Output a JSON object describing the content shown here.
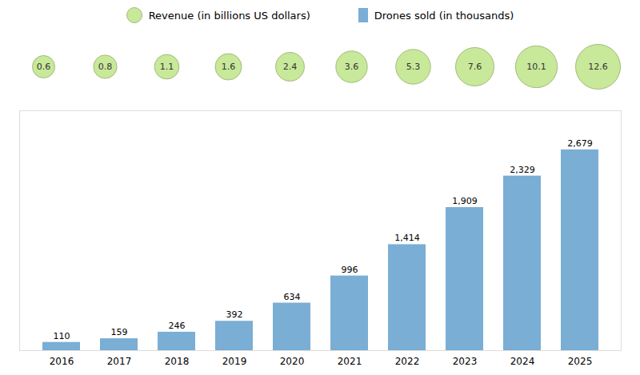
{
  "chart_data": {
    "type": "bar",
    "categories": [
      "2016",
      "2017",
      "2018",
      "2019",
      "2020",
      "2021",
      "2022",
      "2023",
      "2024",
      "2025"
    ],
    "series": [
      {
        "name": "Revenue (in billions US dollars)",
        "type": "bubble",
        "color": "#c8e89a",
        "values": [
          0.6,
          0.8,
          1.1,
          1.6,
          2.4,
          3.6,
          5.3,
          7.6,
          10.1,
          12.6
        ]
      },
      {
        "name": "Drones sold (in thousands)",
        "type": "bar",
        "color": "#7aaed4",
        "values": [
          110,
          159,
          246,
          392,
          634,
          996,
          1414,
          1909,
          2329,
          2679
        ],
        "value_labels": [
          "110",
          "159",
          "246",
          "392",
          "634",
          "996",
          "1,414",
          "1,909",
          "2,329",
          "2,679"
        ]
      }
    ],
    "ylim": [
      0,
      3200
    ],
    "data_labels": true,
    "tick_labels": "x",
    "legend": "top",
    "grid": false
  }
}
